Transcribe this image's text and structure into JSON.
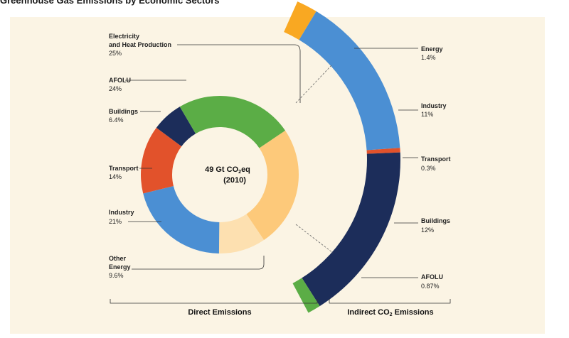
{
  "title": "Greenhouse Gas Emissions by Economic Sectors",
  "center_label": {
    "line1": "49 Gt CO",
    "sub": "2",
    "line1_end": "eq",
    "line2": "(2010)"
  },
  "group_labels": {
    "direct": "Direct Emissions",
    "indirect_pre": "Indirect CO",
    "indirect_sub": "2",
    "indirect_post": " Emissions"
  },
  "chart_data": [
    {
      "type": "pie",
      "title": "Direct Emissions",
      "total": "49 Gt CO2eq (2010)",
      "unit": "%",
      "slices": [
        {
          "label": "Electricity and Heat Production",
          "value": 25,
          "color": "#fdc97a"
        },
        {
          "label": "Other Energy",
          "value": 9.6,
          "color": "#fde0b0"
        },
        {
          "label": "Industry",
          "value": 21,
          "color": "#4b8fd3"
        },
        {
          "label": "Transport",
          "value": 14,
          "color": "#e2522b"
        },
        {
          "label": "Buildings",
          "value": 6.4,
          "color": "#1c2d5a"
        },
        {
          "label": "AFOLU",
          "value": 24,
          "color": "#5bad46"
        }
      ]
    },
    {
      "type": "pie",
      "title": "Indirect CO2 Emissions",
      "unit": "%",
      "slices": [
        {
          "label": "Energy",
          "value": 1.4,
          "color": "#f9a822"
        },
        {
          "label": "Industry",
          "value": 11,
          "color": "#4b8fd3"
        },
        {
          "label": "Transport",
          "value": 0.3,
          "color": "#e2522b"
        },
        {
          "label": "Buildings",
          "value": 12,
          "color": "#1c2d5a"
        },
        {
          "label": "AFOLU",
          "value": 0.87,
          "color": "#5bad46"
        }
      ]
    }
  ],
  "labels": {
    "electricity": {
      "line1": "Electricity",
      "line2": "and Heat Production",
      "pct": "25%"
    },
    "afolu": {
      "name": "AFOLU",
      "pct": "24%"
    },
    "buildings": {
      "name": "Buildings",
      "pct": "6.4%"
    },
    "transport": {
      "name": "Transport",
      "pct": "14%"
    },
    "industry": {
      "name": "Industry",
      "pct": "21%"
    },
    "other_energy": {
      "line1": "Other",
      "line2": "Energy",
      "pct": "9.6%"
    },
    "ind_energy": {
      "name": "Energy",
      "pct": "1.4%"
    },
    "ind_industry": {
      "name": "Industry",
      "pct": "11%"
    },
    "ind_transport": {
      "name": "Transport",
      "pct": "0.3%"
    },
    "ind_buildings": {
      "name": "Buildings",
      "pct": "12%"
    },
    "ind_afolu": {
      "name": "AFOLU",
      "pct": "0.87%"
    }
  }
}
